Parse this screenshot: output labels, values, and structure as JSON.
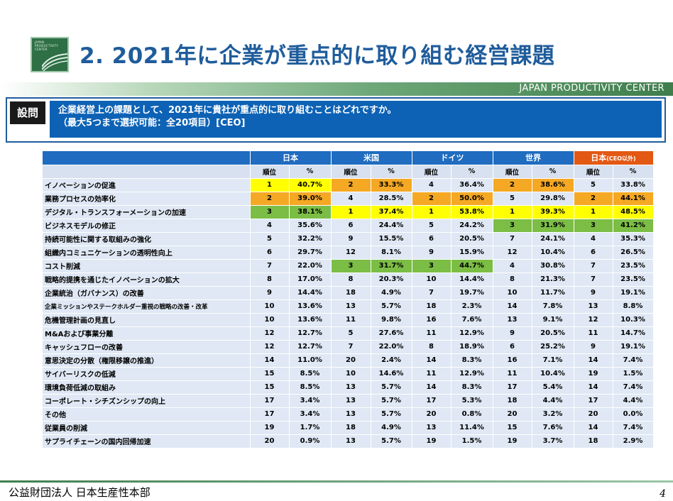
{
  "logo": {
    "lines": [
      "JAPAN",
      "PRODUCTIVITY",
      "CENTER"
    ]
  },
  "title": "2. 2021年に企業が重点的に取り組む経営課題",
  "header_brand": "JAPAN PRODUCTIVITY CENTER",
  "question": {
    "label": "設問",
    "line1": "企業経営上の課題として、2021年に貴社が重点的に取り組むことはどれですか。",
    "line2": "（最大5つまで選択可能：全20項目）[CEO]"
  },
  "table": {
    "groups": [
      {
        "label": "日本",
        "sub": ""
      },
      {
        "label": "米国",
        "sub": ""
      },
      {
        "label": "ドイツ",
        "sub": ""
      },
      {
        "label": "世界",
        "sub": ""
      },
      {
        "label": "日本",
        "sub": "(CEO以外)"
      }
    ],
    "sub_headers": {
      "rank": "順位",
      "pct": "%"
    },
    "highlight_colors": {
      "1": "#ffff00",
      "2": "#f5a824",
      "3": "#7bbd45"
    },
    "rows": [
      {
        "item": "イノベーションの促進",
        "cells": [
          [
            "1",
            "40.7%",
            1
          ],
          [
            "2",
            "33.3%",
            2
          ],
          [
            "4",
            "36.4%",
            0
          ],
          [
            "2",
            "38.6%",
            2
          ],
          [
            "5",
            "33.8%",
            0
          ]
        ]
      },
      {
        "item": "業務プロセスの効率化",
        "cells": [
          [
            "2",
            "39.0%",
            2
          ],
          [
            "4",
            "28.5%",
            0
          ],
          [
            "2",
            "50.0%",
            2
          ],
          [
            "5",
            "29.8%",
            0
          ],
          [
            "2",
            "44.1%",
            2
          ]
        ]
      },
      {
        "item": "デジタル・トランスフォーメーションの加速",
        "cells": [
          [
            "3",
            "38.1%",
            3
          ],
          [
            "1",
            "37.4%",
            1
          ],
          [
            "1",
            "53.8%",
            1
          ],
          [
            "1",
            "39.3%",
            1
          ],
          [
            "1",
            "48.5%",
            1
          ]
        ]
      },
      {
        "item": "ビジネスモデルの修正",
        "cells": [
          [
            "4",
            "35.6%",
            0
          ],
          [
            "6",
            "24.4%",
            0
          ],
          [
            "5",
            "24.2%",
            0
          ],
          [
            "3",
            "31.9%",
            3
          ],
          [
            "3",
            "41.2%",
            3
          ]
        ]
      },
      {
        "item": "持続可能性に関する取組みの強化",
        "cells": [
          [
            "5",
            "32.2%",
            0
          ],
          [
            "9",
            "15.5%",
            0
          ],
          [
            "6",
            "20.5%",
            0
          ],
          [
            "7",
            "24.1%",
            0
          ],
          [
            "4",
            "35.3%",
            0
          ]
        ]
      },
      {
        "item": "組織内コミュニケーションの透明性向上",
        "cells": [
          [
            "6",
            "29.7%",
            0
          ],
          [
            "12",
            "8.1%",
            0
          ],
          [
            "9",
            "15.9%",
            0
          ],
          [
            "12",
            "10.4%",
            0
          ],
          [
            "6",
            "26.5%",
            0
          ]
        ]
      },
      {
        "item": "コスト削減",
        "cells": [
          [
            "7",
            "22.0%",
            0
          ],
          [
            "3",
            "31.7%",
            3
          ],
          [
            "3",
            "44.7%",
            3
          ],
          [
            "4",
            "30.8%",
            0
          ],
          [
            "7",
            "23.5%",
            0
          ]
        ]
      },
      {
        "item": "戦略的提携を通じたイノベーションの拡大",
        "cells": [
          [
            "8",
            "17.0%",
            0
          ],
          [
            "8",
            "20.3%",
            0
          ],
          [
            "10",
            "14.4%",
            0
          ],
          [
            "8",
            "21.3%",
            0
          ],
          [
            "7",
            "23.5%",
            0
          ]
        ]
      },
      {
        "item": "企業統治（ガバナンス）の改善",
        "cells": [
          [
            "9",
            "14.4%",
            0
          ],
          [
            "18",
            "4.9%",
            0
          ],
          [
            "7",
            "19.7%",
            0
          ],
          [
            "10",
            "11.7%",
            0
          ],
          [
            "9",
            "19.1%",
            0
          ]
        ]
      },
      {
        "item": "企業ミッションやステークホルダー重視の戦略の改善・改革",
        "small": true,
        "cells": [
          [
            "10",
            "13.6%",
            0
          ],
          [
            "13",
            "5.7%",
            0
          ],
          [
            "18",
            "2.3%",
            0
          ],
          [
            "14",
            "7.8%",
            0
          ],
          [
            "13",
            "8.8%",
            0
          ]
        ]
      },
      {
        "item": "危機管理計画の見直し",
        "cells": [
          [
            "10",
            "13.6%",
            0
          ],
          [
            "11",
            "9.8%",
            0
          ],
          [
            "16",
            "7.6%",
            0
          ],
          [
            "13",
            "9.1%",
            0
          ],
          [
            "12",
            "10.3%",
            0
          ]
        ]
      },
      {
        "item": "M&Aおよび事業分離",
        "cells": [
          [
            "12",
            "12.7%",
            0
          ],
          [
            "5",
            "27.6%",
            0
          ],
          [
            "11",
            "12.9%",
            0
          ],
          [
            "9",
            "20.5%",
            0
          ],
          [
            "11",
            "14.7%",
            0
          ]
        ]
      },
      {
        "item": "キャッシュフローの改善",
        "cells": [
          [
            "12",
            "12.7%",
            0
          ],
          [
            "7",
            "22.0%",
            0
          ],
          [
            "8",
            "18.9%",
            0
          ],
          [
            "6",
            "25.2%",
            0
          ],
          [
            "9",
            "19.1%",
            0
          ]
        ]
      },
      {
        "item": "意思決定の分散（権限移譲の推進）",
        "cells": [
          [
            "14",
            "11.0%",
            0
          ],
          [
            "20",
            "2.4%",
            0
          ],
          [
            "14",
            "8.3%",
            0
          ],
          [
            "16",
            "7.1%",
            0
          ],
          [
            "14",
            "7.4%",
            0
          ]
        ]
      },
      {
        "item": "サイバーリスクの低減",
        "cells": [
          [
            "15",
            "8.5%",
            0
          ],
          [
            "10",
            "14.6%",
            0
          ],
          [
            "11",
            "12.9%",
            0
          ],
          [
            "11",
            "10.4%",
            0
          ],
          [
            "19",
            "1.5%",
            0
          ]
        ]
      },
      {
        "item": "環境負荷低減の取組み",
        "cells": [
          [
            "15",
            "8.5%",
            0
          ],
          [
            "13",
            "5.7%",
            0
          ],
          [
            "14",
            "8.3%",
            0
          ],
          [
            "17",
            "5.4%",
            0
          ],
          [
            "14",
            "7.4%",
            0
          ]
        ]
      },
      {
        "item": "コーポレート・シチズンシップの向上",
        "cells": [
          [
            "17",
            "3.4%",
            0
          ],
          [
            "13",
            "5.7%",
            0
          ],
          [
            "17",
            "5.3%",
            0
          ],
          [
            "18",
            "4.4%",
            0
          ],
          [
            "17",
            "4.4%",
            0
          ]
        ]
      },
      {
        "item": "その他",
        "cells": [
          [
            "17",
            "3.4%",
            0
          ],
          [
            "13",
            "5.7%",
            0
          ],
          [
            "20",
            "0.8%",
            0
          ],
          [
            "20",
            "3.2%",
            0
          ],
          [
            "20",
            "0.0%",
            0
          ]
        ]
      },
      {
        "item": "従業員の削減",
        "cells": [
          [
            "19",
            "1.7%",
            0
          ],
          [
            "18",
            "4.9%",
            0
          ],
          [
            "13",
            "11.4%",
            0
          ],
          [
            "15",
            "7.6%",
            0
          ],
          [
            "14",
            "7.4%",
            0
          ]
        ]
      },
      {
        "item": "サプライチェーンの国内回帰加速",
        "cells": [
          [
            "20",
            "0.9%",
            0
          ],
          [
            "13",
            "5.7%",
            0
          ],
          [
            "19",
            "1.5%",
            0
          ],
          [
            "19",
            "3.7%",
            0
          ],
          [
            "18",
            "2.9%",
            0
          ]
        ]
      }
    ]
  },
  "footer": {
    "org": "公益財団法人 日本生産性本部",
    "page": "4"
  }
}
